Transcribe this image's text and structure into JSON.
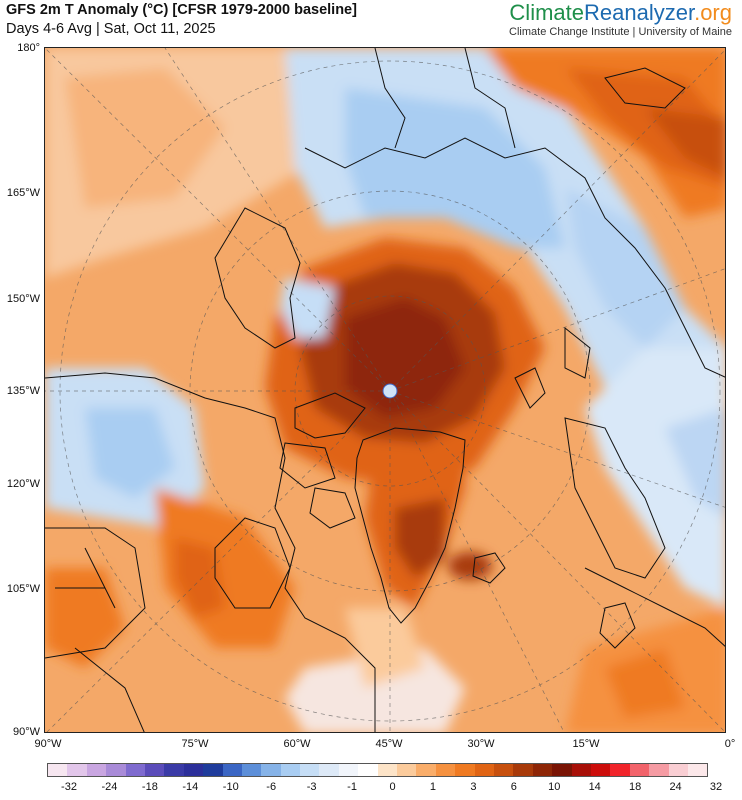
{
  "header": {
    "title": "GFS 2m T Anomaly (°C) [CFSR 1979-2000 baseline]",
    "subtitle": "Days 4-6 Avg | Sat, Oct 11, 2025"
  },
  "brand": {
    "name_part1": "Climate",
    "name_part2": "Reanalyzer",
    "name_part3": ".org",
    "tagline": "Climate Change Institute | University of Maine"
  },
  "map": {
    "left_axis_labels": [
      "180°",
      "165°W",
      "150°W",
      "135°W",
      "120°W",
      "105°W",
      "90°W"
    ],
    "bottom_axis_labels": [
      "90°W",
      "75°W",
      "60°W",
      "45°W",
      "30°W",
      "15°W",
      "0°"
    ],
    "projection": "polar-stereographic-north"
  },
  "color_scale": {
    "labels": [
      "-32",
      "-24",
      "-18",
      "-14",
      "-10",
      "-6",
      "-3",
      "-1",
      "0",
      "1",
      "3",
      "6",
      "10",
      "14",
      "18",
      "24",
      "32"
    ],
    "colors": [
      "#f6e6f0",
      "#e2c6ea",
      "#c9a6e1",
      "#a98bd8",
      "#7f6bcf",
      "#5b4cba",
      "#3a3aa6",
      "#2c2f9a",
      "#1f3c9c",
      "#3b66c4",
      "#5d8fd9",
      "#86b3e8",
      "#a9cdf2",
      "#c6def6",
      "#dde9f7",
      "#f1f5fb",
      "#ffffff",
      "#fde4c8",
      "#fbcb9c",
      "#f9ad6a",
      "#f59140",
      "#ef7a22",
      "#e06414",
      "#c7500e",
      "#a83a0a",
      "#8e2607",
      "#7a1405",
      "#a81008",
      "#cc0d0b",
      "#f0242a",
      "#f2636b",
      "#f59ba3",
      "#f9ced3",
      "#fce8ea"
    ]
  }
}
